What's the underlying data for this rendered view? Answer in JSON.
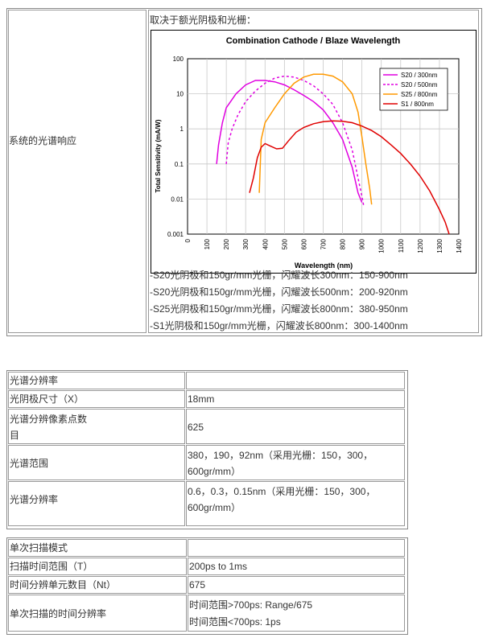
{
  "table1": {
    "row_label": "系统的光谱响应",
    "intro": "取决于额光阴极和光栅：",
    "notes": [
      "-S20光阴极和150gr/mm光栅，闪耀波长300nm：150-900nm",
      "-S20光阴极和150gr/mm光栅，闪耀波长500nm：200-920nm",
      "-S25光阴极和150gr/mm光栅，闪耀波长800nm：380-950nm",
      "-S1光阴极和150gr/mm光栅，闪耀波长800nm：300-1400nm"
    ]
  },
  "chart_data": {
    "type": "line",
    "title": "Combination Cathode / Blaze Wavelength",
    "xlabel": "Wavelength (nm)",
    "ylabel": "Total Sensitivity (mA/W)",
    "xlim": [
      0,
      1400
    ],
    "ylim": [
      0.001,
      100
    ],
    "yscale": "log",
    "x_ticks": [
      "0",
      "100",
      "200",
      "300",
      "400",
      "500",
      "600",
      "700",
      "800",
      "900",
      "1000",
      "1100",
      "1200",
      "1300",
      "1400"
    ],
    "y_ticks": [
      "100",
      "10",
      "1",
      "0.1",
      "0.01",
      "0.001"
    ],
    "grid": true,
    "legend_position": "top-right",
    "series": [
      {
        "name": "S20 / 300nm",
        "color": "#e000e0",
        "dash": "solid",
        "points": [
          [
            150,
            0.1
          ],
          [
            160,
            0.35
          ],
          [
            180,
            1.5
          ],
          [
            200,
            4
          ],
          [
            250,
            10
          ],
          [
            300,
            18
          ],
          [
            350,
            24
          ],
          [
            400,
            24
          ],
          [
            450,
            22
          ],
          [
            500,
            18
          ],
          [
            550,
            13
          ],
          [
            600,
            9
          ],
          [
            650,
            6
          ],
          [
            700,
            3.5
          ],
          [
            750,
            1.5
          ],
          [
            800,
            0.5
          ],
          [
            850,
            0.08
          ],
          [
            880,
            0.015
          ],
          [
            900,
            0.008
          ]
        ]
      },
      {
        "name": "S20 / 500nm",
        "color": "#e000e0",
        "dash": "dash",
        "points": [
          [
            200,
            0.1
          ],
          [
            210,
            0.4
          ],
          [
            230,
            1
          ],
          [
            260,
            2.5
          ],
          [
            300,
            6
          ],
          [
            350,
            12
          ],
          [
            400,
            20
          ],
          [
            450,
            28
          ],
          [
            500,
            32
          ],
          [
            550,
            30
          ],
          [
            600,
            24
          ],
          [
            650,
            17
          ],
          [
            700,
            10
          ],
          [
            750,
            5
          ],
          [
            800,
            1.5
          ],
          [
            850,
            0.25
          ],
          [
            880,
            0.04
          ],
          [
            900,
            0.012
          ],
          [
            910,
            0.006
          ]
        ]
      },
      {
        "name": "S25 / 800nm",
        "color": "#ff9900",
        "dash": "solid",
        "points": [
          [
            370,
            0.015
          ],
          [
            380,
            0.5
          ],
          [
            400,
            1.5
          ],
          [
            450,
            4
          ],
          [
            500,
            10
          ],
          [
            550,
            20
          ],
          [
            600,
            30
          ],
          [
            650,
            36
          ],
          [
            700,
            36
          ],
          [
            750,
            32
          ],
          [
            800,
            22
          ],
          [
            850,
            10
          ],
          [
            880,
            3
          ],
          [
            900,
            0.6
          ],
          [
            920,
            0.1
          ],
          [
            940,
            0.02
          ],
          [
            950,
            0.007
          ]
        ]
      },
      {
        "name": "S1  / 800nm",
        "color": "#e00000",
        "dash": "solid",
        "points": [
          [
            320,
            0.015
          ],
          [
            340,
            0.04
          ],
          [
            360,
            0.15
          ],
          [
            380,
            0.3
          ],
          [
            400,
            0.38
          ],
          [
            430,
            0.32
          ],
          [
            460,
            0.27
          ],
          [
            490,
            0.28
          ],
          [
            520,
            0.45
          ],
          [
            560,
            0.8
          ],
          [
            600,
            1.1
          ],
          [
            650,
            1.4
          ],
          [
            700,
            1.6
          ],
          [
            750,
            1.7
          ],
          [
            800,
            1.65
          ],
          [
            850,
            1.5
          ],
          [
            900,
            1.2
          ],
          [
            950,
            0.9
          ],
          [
            1000,
            0.6
          ],
          [
            1050,
            0.35
          ],
          [
            1100,
            0.2
          ],
          [
            1150,
            0.1
          ],
          [
            1200,
            0.045
          ],
          [
            1250,
            0.017
          ],
          [
            1300,
            0.005
          ],
          [
            1330,
            0.0022
          ],
          [
            1350,
            0.001
          ]
        ]
      }
    ]
  },
  "table2": {
    "rows": [
      [
        "光谱分辨率",
        ""
      ],
      [
        "光阴极尺寸（X）",
        "18mm"
      ],
      [
        "光谱分辨像素点数",
        "目",
        "625"
      ],
      [
        "光谱范围",
        "380，190，92nm（采用光栅：150，300，",
        "600gr/mm）"
      ],
      [
        "光谱分辨率",
        "0.6，0.3，0.15nm（采用光栅：150，300，",
        "600gr/mm）"
      ]
    ]
  },
  "table3": {
    "rows": [
      [
        "单次扫描模式",
        ""
      ],
      [
        "扫描时间范围（T）",
        "200ps to 1ms"
      ],
      [
        "时间分辨单元数目（Nt）",
        "675"
      ],
      [
        "单次扫描的时间分辨率",
        "时间范围>700ps:  Range/675",
        "时间范围<700ps: 1ps"
      ]
    ]
  }
}
